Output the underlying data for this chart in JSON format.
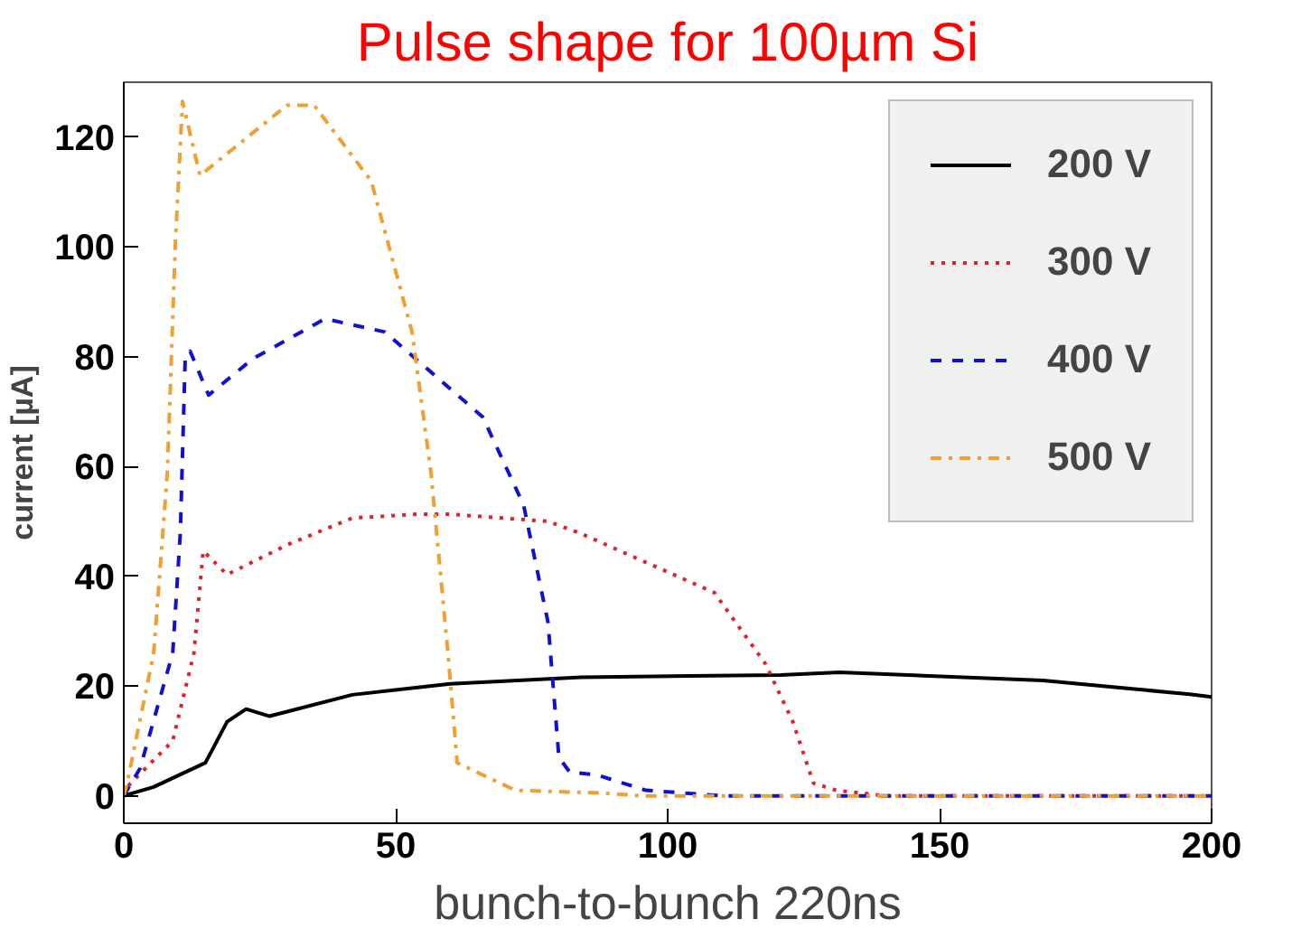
{
  "chart_data": {
    "type": "line",
    "title": "Pulse shape for 100µm Si",
    "ylabel": "current [µA]",
    "annotations": [
      "bunch-to-bunch 220ns"
    ],
    "xlim": [
      0,
      200
    ],
    "ylim": [
      -5,
      130
    ],
    "xticks": [
      0,
      50,
      100,
      150,
      200
    ],
    "yticks": [
      0,
      20,
      40,
      60,
      80,
      100,
      120
    ],
    "grid": false,
    "legend": "top right",
    "marker": "none",
    "series": [
      {
        "name": "200 V",
        "color": "#000000",
        "line_style": "solid",
        "x": [
          0,
          5.5,
          15,
          19,
          22.5,
          26.8,
          42,
          60,
          84,
          120.7,
          131.6,
          169,
          196,
          200
        ],
        "values": [
          0,
          1.6,
          6,
          13.5,
          15.8,
          14.5,
          18.4,
          20.4,
          21.6,
          22,
          22.5,
          21,
          18.5,
          18
        ]
      },
      {
        "name": "300 V",
        "color": "#e0202a",
        "line_style": "dotted",
        "x": [
          0,
          1,
          9,
          12.9,
          14.6,
          19,
          30,
          42,
          54,
          60,
          78,
          84,
          108.6,
          118,
          123,
          126.8,
          131,
          140,
          200
        ],
        "values": [
          0,
          2,
          10,
          26,
          44.6,
          40.3,
          45.7,
          50.6,
          51.3,
          51.3,
          50,
          47.8,
          37,
          24,
          13.5,
          2.3,
          1,
          0,
          0
        ]
      },
      {
        "name": "400 V",
        "color": "#1010d0",
        "line_style": "dashed",
        "x": [
          0,
          3,
          9,
          10.4,
          11.3,
          12.2,
          15.6,
          23.7,
          37,
          48,
          66,
          73.5,
          78,
          80,
          82,
          87,
          96,
          110,
          200
        ],
        "values": [
          0,
          5,
          26,
          48,
          80,
          81,
          73,
          79.6,
          86.9,
          84.5,
          69,
          53,
          31.6,
          7,
          4.3,
          3.8,
          1,
          0,
          0
        ]
      },
      {
        "name": "500 V",
        "color": "#f0a030",
        "line_style": "dashdot",
        "x": [
          0,
          0.7,
          5.5,
          8,
          9.5,
          10.8,
          14,
          30,
          35,
          45.5,
          53,
          56.5,
          59.6,
          61.3,
          72,
          88,
          95,
          200
        ],
        "values": [
          0,
          2.7,
          26,
          58.7,
          101,
          126.5,
          113,
          125.8,
          125.8,
          112,
          84.5,
          58.7,
          26,
          6,
          1,
          0.5,
          0,
          0
        ]
      }
    ]
  }
}
